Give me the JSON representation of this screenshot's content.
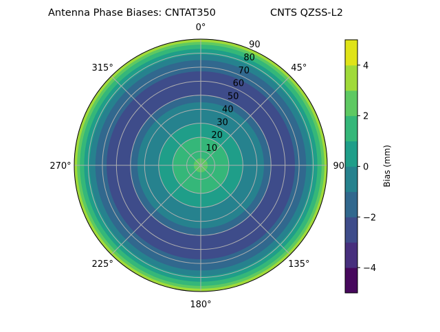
{
  "chart_data": {
    "type": "polar-contour",
    "title_left": "Antenna Phase Biases: CNTAT350",
    "title_right": "CNTS QZSS-L2",
    "angle_ticks": [
      "0°",
      "45°",
      "90°",
      "135°",
      "180°",
      "225°",
      "270°",
      "315°"
    ],
    "angle_tick_values": [
      0,
      45,
      90,
      135,
      180,
      225,
      270,
      315
    ],
    "radial_ticks": [
      "10",
      "20",
      "30",
      "40",
      "50",
      "60",
      "70",
      "80",
      "90"
    ],
    "radial_tick_values": [
      10,
      20,
      30,
      40,
      50,
      60,
      70,
      80,
      90
    ],
    "rlim": [
      0,
      90
    ],
    "grid": true,
    "colorbar": {
      "label": "Bias (mm)",
      "levels": [
        -5,
        -4,
        -3,
        -2,
        -1,
        0,
        1,
        2,
        3,
        4,
        5
      ],
      "tick_values": [
        -4,
        -2,
        0,
        2,
        4
      ],
      "tick_labels": [
        "−4",
        "−2",
        "0",
        "2",
        "4"
      ],
      "colors": [
        "#46085c",
        "#472f7d",
        "#3e4c8a",
        "#31688e",
        "#26828e",
        "#1f9e89",
        "#35b779",
        "#5ec962",
        "#a0da39",
        "#dfe318"
      ],
      "colormap": "viridis"
    },
    "radial_bands": [
      {
        "r": [
          88,
          90
        ],
        "range": [
          3,
          4
        ]
      },
      {
        "r": [
          86,
          88
        ],
        "range": [
          2,
          3
        ]
      },
      {
        "r": [
          83,
          86
        ],
        "range": [
          1,
          2
        ]
      },
      {
        "r": [
          79,
          83
        ],
        "range": [
          0,
          1
        ]
      },
      {
        "r": [
          75,
          79
        ],
        "range": [
          -1,
          0
        ]
      },
      {
        "r": [
          67,
          75
        ],
        "range": [
          -2,
          -1
        ]
      },
      {
        "r": [
          50,
          67
        ],
        "range": [
          -3,
          -2
        ]
      },
      {
        "r": [
          45,
          50
        ],
        "range": [
          -2,
          -1
        ]
      },
      {
        "r": [
          30,
          45
        ],
        "range": [
          -1,
          0
        ]
      },
      {
        "r": [
          20,
          30
        ],
        "range": [
          0,
          1
        ]
      },
      {
        "r": [
          5,
          20
        ],
        "range": [
          1,
          2
        ]
      },
      {
        "r": [
          0,
          5
        ],
        "range": [
          2,
          3
        ]
      }
    ]
  }
}
